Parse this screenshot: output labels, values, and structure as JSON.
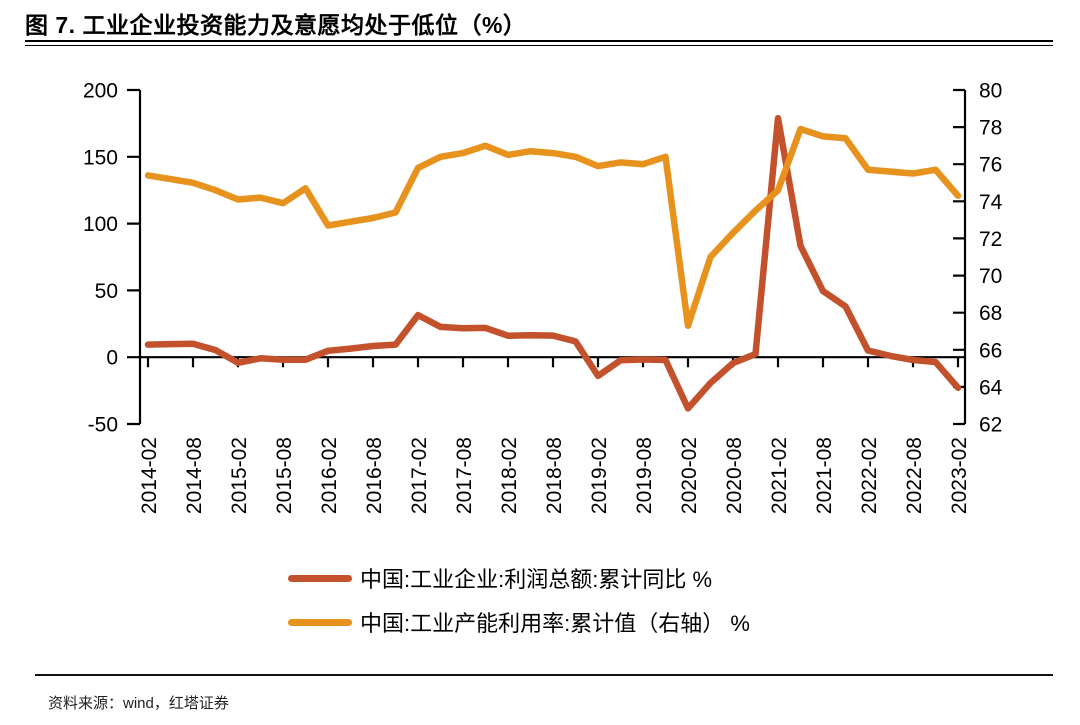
{
  "figure": {
    "title": "图 7. 工业企业投资能力及意愿均处于低位（%）",
    "source": "资料来源：wind，红塔证券"
  },
  "chart_data": {
    "type": "line",
    "x": [
      "2014-02",
      "2014-05",
      "2014-08",
      "2014-11",
      "2015-02",
      "2015-05",
      "2015-08",
      "2015-11",
      "2016-02",
      "2016-05",
      "2016-08",
      "2016-11",
      "2017-02",
      "2017-05",
      "2017-08",
      "2017-11",
      "2018-02",
      "2018-05",
      "2018-08",
      "2018-11",
      "2019-02",
      "2019-05",
      "2019-08",
      "2019-11",
      "2020-02",
      "2020-05",
      "2020-08",
      "2020-11",
      "2021-02",
      "2021-05",
      "2021-08",
      "2021-11",
      "2022-02",
      "2022-05",
      "2022-08",
      "2022-11",
      "2023-02"
    ],
    "x_tick_labels": [
      "2014-02",
      "2014-08",
      "2015-02",
      "2015-08",
      "2016-02",
      "2016-08",
      "2017-02",
      "2017-08",
      "2018-02",
      "2018-08",
      "2019-02",
      "2019-08",
      "2020-02",
      "2020-08",
      "2021-02",
      "2021-08",
      "2022-02",
      "2022-08",
      "2023-02"
    ],
    "x_tick_every": 2,
    "series": [
      {
        "name": "中国:工业企业:利润总额:累计同比 %",
        "axis": "left",
        "color": "#C2512C",
        "values": [
          9.4,
          9.8,
          10.0,
          5.3,
          -4.2,
          -0.8,
          -1.9,
          -1.9,
          4.8,
          6.4,
          8.4,
          9.4,
          31.5,
          22.7,
          21.6,
          21.9,
          16.1,
          16.5,
          16.2,
          11.8,
          -14.0,
          -2.3,
          -1.7,
          -2.1,
          -38.3,
          -19.3,
          -4.4,
          2.4,
          178.9,
          83.4,
          49.5,
          38.0,
          5.0,
          1.0,
          -2.1,
          -3.6,
          -22.9
        ]
      },
      {
        "name": "中国:工业产能利用率:累计值（右轴） %",
        "axis": "right",
        "color": "#E8921E",
        "values": [
          75.4,
          75.2,
          75.0,
          74.6,
          74.1,
          74.2,
          73.9,
          74.7,
          72.7,
          72.9,
          73.1,
          73.4,
          75.8,
          76.4,
          76.6,
          77.0,
          76.5,
          76.7,
          76.6,
          76.4,
          75.9,
          76.1,
          76.0,
          76.4,
          67.3,
          71.0,
          72.3,
          73.5,
          74.6,
          77.9,
          77.5,
          77.4,
          75.7,
          75.6,
          75.5,
          75.7,
          74.3
        ]
      }
    ],
    "left_axis": {
      "min": -50,
      "max": 200,
      "ticks": [
        200,
        150,
        100,
        50,
        0,
        -50
      ]
    },
    "right_axis": {
      "min": 62,
      "max": 80,
      "ticks": [
        80,
        78,
        76,
        74,
        72,
        70,
        68,
        66,
        64,
        62
      ]
    },
    "grid": false,
    "legend_position": "bottom"
  }
}
